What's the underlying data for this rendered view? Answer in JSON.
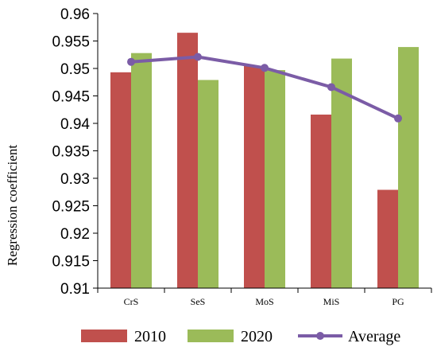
{
  "chart_data": {
    "type": "bar",
    "categories": [
      "CrS",
      "SeS",
      "MoS",
      "MiS",
      "PG"
    ],
    "series": [
      {
        "name": "2010",
        "type": "bar",
        "color": "#c0504d",
        "values": [
          0.9493,
          0.9565,
          0.9505,
          0.9416,
          0.9279
        ]
      },
      {
        "name": "2020",
        "type": "bar",
        "color": "#9bbb59",
        "values": [
          0.9528,
          0.9479,
          0.9497,
          0.9518,
          0.9539
        ]
      },
      {
        "name": "Average",
        "type": "line",
        "color": "#7b5ca6",
        "values": [
          0.9512,
          0.9521,
          0.9501,
          0.9466,
          0.9409
        ]
      }
    ],
    "ylabel": "Regression coefficient",
    "ylim": [
      0.91,
      0.96
    ],
    "yticks": [
      "0.91",
      "0.915",
      "0.92",
      "0.925",
      "0.93",
      "0.935",
      "0.94",
      "0.945",
      "0.95",
      "0.955",
      "0.96"
    ],
    "legend_position": "bottom",
    "grid": false
  }
}
